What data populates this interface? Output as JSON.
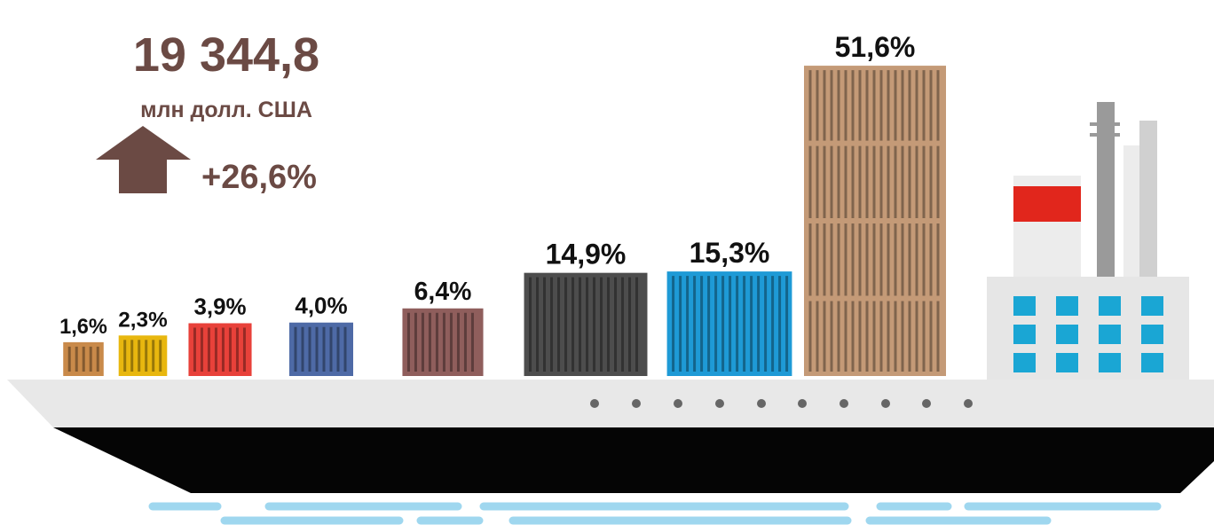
{
  "chart_data": {
    "type": "bar",
    "total": "19 344,8",
    "total_unit": "млн долл. США",
    "change": "+26,6%",
    "values": [
      1.6,
      2.3,
      3.9,
      4.0,
      6.4,
      14.9,
      15.3,
      51.6
    ],
    "value_labels": [
      "1,6%",
      "2,3%",
      "3,9%",
      "4,0%",
      "6,4%",
      "14,9%",
      "15,3%",
      "51,6%"
    ],
    "colors": [
      "#c98a4a",
      "#e8b70f",
      "#e8413a",
      "#4e6aa6",
      "#8f5e5c",
      "#4d4d4d",
      "#1e9ad6",
      "#c49a77"
    ]
  }
}
